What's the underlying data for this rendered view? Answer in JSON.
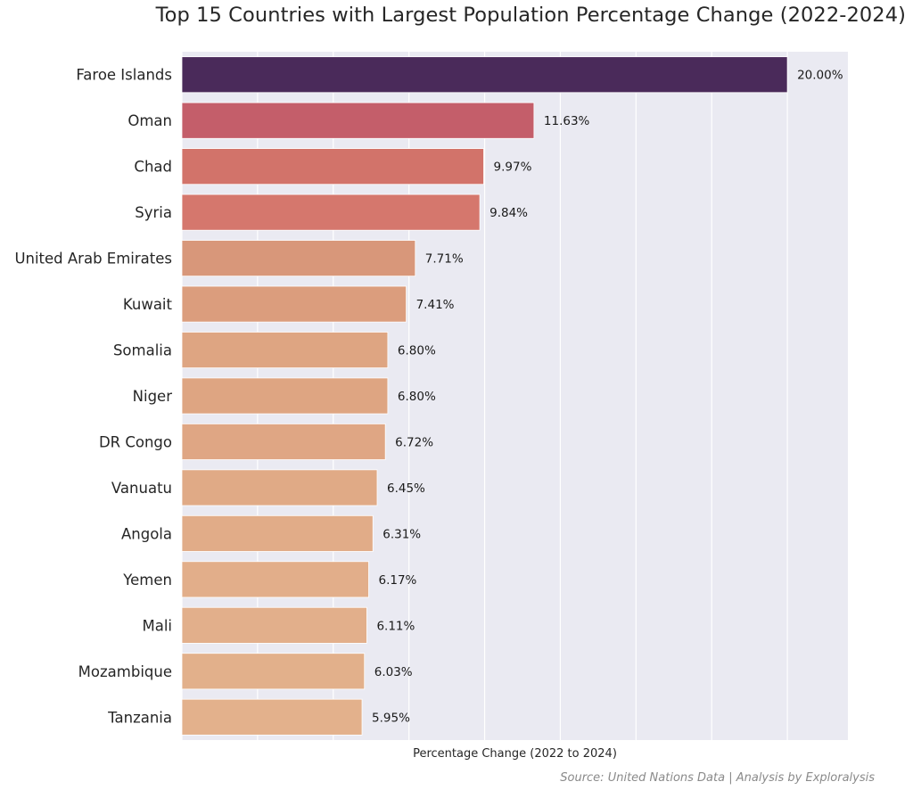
{
  "chart_data": {
    "type": "bar",
    "orientation": "horizontal",
    "title": "Top 15 Countries with Largest Population Percentage Change (2022-2024)",
    "xlabel": "Percentage Change (2022 to 2024)",
    "ylabel": "",
    "xlim": [
      0,
      22
    ],
    "grid": true,
    "x_gridline_step": 2.5,
    "x_tick_labels_shown": false,
    "categories": [
      "Faroe Islands",
      "Oman",
      "Chad",
      "Syria",
      "United Arab Emirates",
      "Kuwait",
      "Somalia",
      "Niger",
      "DR Congo",
      "Vanuatu",
      "Angola",
      "Yemen",
      "Mali",
      "Mozambique",
      "Tanzania"
    ],
    "values": [
      20.0,
      11.63,
      9.97,
      9.84,
      7.71,
      7.41,
      6.8,
      6.8,
      6.72,
      6.45,
      6.31,
      6.17,
      6.11,
      6.03,
      5.95
    ],
    "value_labels": [
      "20.00%",
      "11.63%",
      "9.97%",
      "9.84%",
      "7.71%",
      "7.41%",
      "6.80%",
      "6.80%",
      "6.72%",
      "6.45%",
      "6.31%",
      "6.17%",
      "6.11%",
      "6.03%",
      "5.95%"
    ],
    "colors": [
      "#4a2a5a",
      "#c45e6a",
      "#d2736a",
      "#d5776d",
      "#d8977a",
      "#db9d7d",
      "#dea582",
      "#dea582",
      "#dfa684",
      "#e0aa86",
      "#e1ac88",
      "#e2ae8a",
      "#e2af8b",
      "#e2b08b",
      "#e3b18c"
    ],
    "source_note": "Source: United Nations Data | Analysis by Exploralysis",
    "style": {
      "plot_background": "#eaeaf2",
      "grid_color": "#ffffff"
    }
  }
}
